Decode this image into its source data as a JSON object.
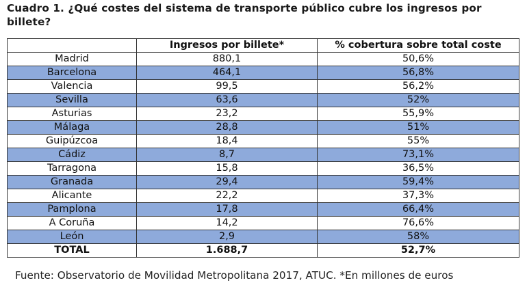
{
  "title": "Cuadro 1. ¿Qué costes del sistema de transporte público cubre los ingresos por billete?",
  "table": {
    "headers": [
      "",
      "Ingresos por billete*",
      "% cobertura sobre total coste"
    ],
    "rows": [
      [
        "Madrid",
        "880,1",
        "50,6%"
      ],
      [
        "Barcelona",
        "464,1",
        "56,8%"
      ],
      [
        "Valencia",
        "99,5",
        "56,2%"
      ],
      [
        "Sevilla",
        "63,6",
        "52%"
      ],
      [
        "Asturias",
        "23,2",
        "55,9%"
      ],
      [
        "Málaga",
        "28,8",
        "51%"
      ],
      [
        "Guipúzcoa",
        "18,4",
        "55%"
      ],
      [
        "Cádiz",
        "8,7",
        "73,1%"
      ],
      [
        "Tarragona",
        "15,8",
        "36,5%"
      ],
      [
        "Granada",
        "29,4",
        "59,4%"
      ],
      [
        "Alicante",
        "22,2",
        "37,3%"
      ],
      [
        "Pamplona",
        "17,8",
        "66,4%"
      ],
      [
        "A Coruña",
        "14,2",
        "76,6%"
      ],
      [
        "León",
        "2,9",
        "58%"
      ]
    ],
    "total": [
      "TOTAL",
      "1.688,7",
      "52,7%"
    ]
  },
  "source": "Fuente: Observatorio de Movilidad Metropolitana 2017, ATUC. *En millones de euros",
  "colors": {
    "alternate_row": "#8eaadb",
    "border": "#333333",
    "background": "#ffffff"
  }
}
